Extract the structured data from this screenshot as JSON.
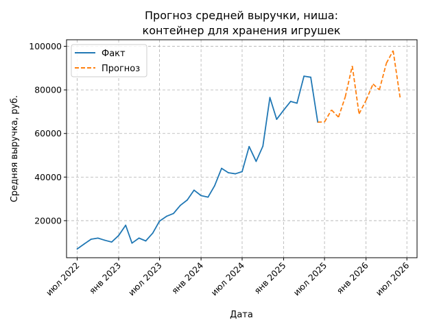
{
  "chart_data": {
    "type": "line",
    "title_lines": [
      "Прогноз средней выручки, ниша:",
      "контейнер для хранения игрушек"
    ],
    "xlabel": "Дата",
    "ylabel": "Средняя выручка, руб.",
    "x_ticks": [
      {
        "label": "июл 2022",
        "date": "2022-07-01"
      },
      {
        "label": "янв 2023",
        "date": "2023-01-01"
      },
      {
        "label": "июл 2023",
        "date": "2023-07-01"
      },
      {
        "label": "янв 2024",
        "date": "2024-01-01"
      },
      {
        "label": "июл 2024",
        "date": "2024-07-01"
      },
      {
        "label": "янв 2025",
        "date": "2025-01-01"
      },
      {
        "label": "июл 2025",
        "date": "2025-07-01"
      },
      {
        "label": "янв 2026",
        "date": "2026-01-01"
      },
      {
        "label": "июл 2026",
        "date": "2026-07-01"
      }
    ],
    "y_ticks": [
      20000,
      40000,
      60000,
      80000,
      100000
    ],
    "xlim": [
      "2022-05-15",
      "2026-08-15"
    ],
    "ylim": [
      3000,
      103000
    ],
    "grid": true,
    "legend_position": "top-left",
    "series": [
      {
        "name": "Факт",
        "color": "#1f77b4",
        "style": "solid",
        "points": [
          [
            "2022-07-01",
            7000
          ],
          [
            "2022-08-01",
            9300
          ],
          [
            "2022-09-01",
            11500
          ],
          [
            "2022-10-01",
            12000
          ],
          [
            "2022-11-01",
            11000
          ],
          [
            "2022-12-01",
            10200
          ],
          [
            "2023-01-01",
            13200
          ],
          [
            "2023-02-01",
            17900
          ],
          [
            "2023-03-01",
            9700
          ],
          [
            "2023-04-01",
            12000
          ],
          [
            "2023-05-01",
            10700
          ],
          [
            "2023-06-01",
            14300
          ],
          [
            "2023-07-01",
            19800
          ],
          [
            "2023-08-01",
            22000
          ],
          [
            "2023-09-01",
            23300
          ],
          [
            "2023-10-01",
            27000
          ],
          [
            "2023-11-01",
            29500
          ],
          [
            "2023-12-01",
            34000
          ],
          [
            "2024-01-01",
            31500
          ],
          [
            "2024-02-01",
            30800
          ],
          [
            "2024-03-01",
            36000
          ],
          [
            "2024-04-01",
            44000
          ],
          [
            "2024-05-01",
            42000
          ],
          [
            "2024-06-01",
            41500
          ],
          [
            "2024-07-01",
            42500
          ],
          [
            "2024-08-01",
            54000
          ],
          [
            "2024-09-01",
            47200
          ],
          [
            "2024-10-01",
            54200
          ],
          [
            "2024-11-01",
            76500
          ],
          [
            "2024-12-01",
            66500
          ],
          [
            "2025-01-01",
            70700
          ],
          [
            "2025-02-01",
            74700
          ],
          [
            "2025-03-01",
            73900
          ],
          [
            "2025-04-01",
            86300
          ],
          [
            "2025-05-01",
            85800
          ],
          [
            "2025-06-01",
            65200
          ]
        ]
      },
      {
        "name": "Прогноз",
        "color": "#ff7f0e",
        "style": "dashed",
        "points": [
          [
            "2025-06-01",
            65200
          ],
          [
            "2025-07-01",
            65300
          ],
          [
            "2025-08-01",
            70800
          ],
          [
            "2025-09-01",
            67500
          ],
          [
            "2025-10-01",
            76800
          ],
          [
            "2025-11-01",
            91000
          ],
          [
            "2025-12-01",
            69000
          ],
          [
            "2026-01-01",
            75200
          ],
          [
            "2026-02-01",
            82700
          ],
          [
            "2026-03-01",
            80000
          ],
          [
            "2026-04-01",
            92200
          ],
          [
            "2026-05-01",
            98000
          ],
          [
            "2026-06-01",
            76400
          ]
        ]
      }
    ]
  }
}
